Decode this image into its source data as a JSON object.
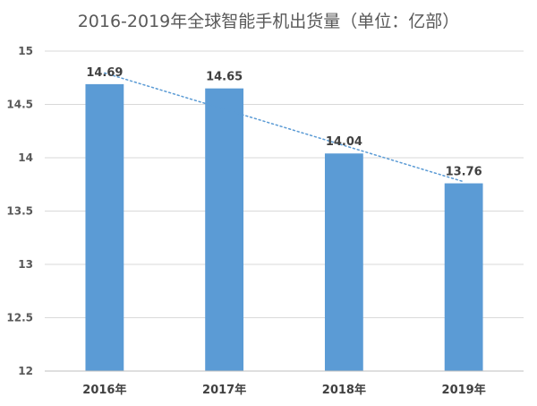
{
  "chart_data": {
    "type": "bar",
    "title": "2016-2019年全球智能手机出货量（单位：亿部）",
    "xlabel": "",
    "ylabel": "",
    "categories": [
      "2016年",
      "2017年",
      "2018年",
      "2019年"
    ],
    "values": [
      14.69,
      14.65,
      14.04,
      13.76
    ],
    "ylim": [
      12,
      15
    ],
    "yticks": [
      12,
      12.5,
      13,
      13.5,
      14,
      14.5,
      15
    ],
    "ytick_labels": [
      "12",
      "12.5",
      "13",
      "13.5",
      "14",
      "14.5",
      "15"
    ],
    "data_labels": [
      "14.69",
      "14.65",
      "14.04",
      "13.76"
    ],
    "trendline": {
      "type": "linear",
      "style": "dotted"
    },
    "grid": true,
    "legend": "none",
    "colors": {
      "bar": "#5b9bd5",
      "trendline": "#5b9bd5"
    }
  }
}
